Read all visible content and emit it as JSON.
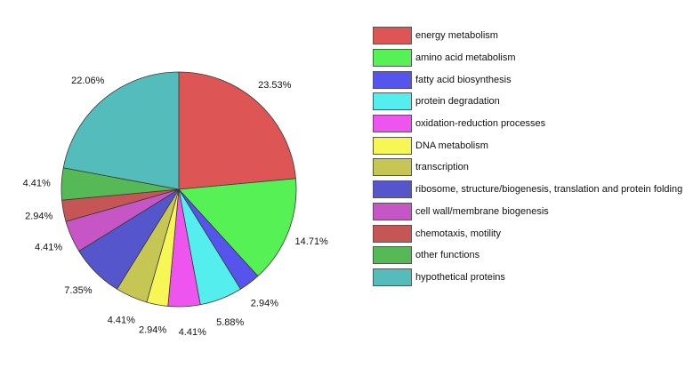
{
  "chart_data": {
    "type": "pie",
    "title": "",
    "legend_position": "right",
    "slices": [
      {
        "name": "energy metabolism",
        "value": 23.53,
        "label": "23.53%",
        "color": "#de5555"
      },
      {
        "name": "amino acid metabolism",
        "value": 14.71,
        "label": "14.71%",
        "color": "#55f155"
      },
      {
        "name": "fatty acid biosynthesis",
        "value": 2.94,
        "label": "2.94%",
        "color": "#5555ee"
      },
      {
        "name": "protein degradation",
        "value": 5.88,
        "label": "5.88%",
        "color": "#55eeee"
      },
      {
        "name": "oxidation-reduction processes",
        "value": 4.41,
        "label": "4.41%",
        "color": "#ee55ee"
      },
      {
        "name": "DNA metabolism",
        "value": 2.94,
        "label": "2.94%",
        "color": "#f6f655"
      },
      {
        "name": "transcription",
        "value": 4.41,
        "label": "4.41%",
        "color": "#c6c655"
      },
      {
        "name": "ribosome, structure/biogenesis, translation and protein folding",
        "value": 7.35,
        "label": "7.35%",
        "color": "#5555cc"
      },
      {
        "name": "cell wall/membrane biogenesis",
        "value": 4.41,
        "label": "4.41%",
        "color": "#c655c6"
      },
      {
        "name": "chemotaxis, motility",
        "value": 2.94,
        "label": "2.94%",
        "color": "#c65555"
      },
      {
        "name": "other functions",
        "value": 4.41,
        "label": "4.41%",
        "color": "#55b955"
      },
      {
        "name": "hypothetical proteins",
        "value": 22.06,
        "label": "22.06%",
        "color": "#55bcbc"
      }
    ]
  }
}
